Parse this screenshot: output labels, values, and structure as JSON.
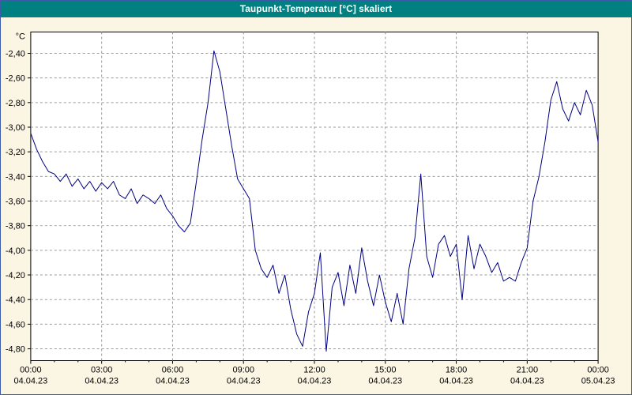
{
  "title": "Taupunkt-Temperatur [°C] skaliert",
  "colors": {
    "titlebar_bg": "#008080",
    "titlebar_text": "#ffffff",
    "window_bg": "#fbf5e4",
    "window_border": "#3c5ba8",
    "plot_bg": "#ffffff",
    "grid": "#9a9a9a",
    "axis": "#000000",
    "line": "#000080"
  },
  "chart_data": {
    "type": "line",
    "title": "Taupunkt-Temperatur [°C] skaliert",
    "ylabel": "°C",
    "xlabel": "",
    "grid": "dashed",
    "legend": "none",
    "ylim": [
      -4.9,
      -2.23
    ],
    "xlim_hours": [
      0,
      24
    ],
    "yticks": {
      "values": [
        -2.4,
        -2.6,
        -2.8,
        -3.0,
        -3.2,
        -3.4,
        -3.6,
        -3.8,
        -4.0,
        -4.2,
        -4.4,
        -4.6,
        -4.8
      ],
      "labels": [
        "-2,40",
        "-2,60",
        "-2,80",
        "-3,00",
        "-3,20",
        "-3,40",
        "-3,60",
        "-3,80",
        "-4,00",
        "-4,20",
        "-4,40",
        "-4,60",
        "-4,80"
      ]
    },
    "xticks": {
      "hours": [
        0,
        3,
        6,
        9,
        12,
        15,
        18,
        21,
        24
      ],
      "time_labels": [
        "00:00",
        "03:00",
        "06:00",
        "09:00",
        "12:00",
        "15:00",
        "18:00",
        "21:00",
        "00:00"
      ],
      "date_labels": [
        "04.04.23",
        "04.04.23",
        "04.04.23",
        "04.04.23",
        "04.04.23",
        "04.04.23",
        "04.04.23",
        "04.04.23",
        "05.04.23"
      ]
    },
    "series": [
      {
        "name": "Taupunkt-Temperatur",
        "color": "#000080",
        "x_hours": {
          "start": 0,
          "step": 0.25
        },
        "values": [
          -3.05,
          -3.18,
          -3.28,
          -3.36,
          -3.38,
          -3.44,
          -3.38,
          -3.48,
          -3.42,
          -3.5,
          -3.44,
          -3.52,
          -3.45,
          -3.5,
          -3.44,
          -3.55,
          -3.58,
          -3.5,
          -3.62,
          -3.55,
          -3.58,
          -3.62,
          -3.55,
          -3.66,
          -3.72,
          -3.8,
          -3.85,
          -3.78,
          -3.45,
          -3.1,
          -2.8,
          -2.38,
          -2.55,
          -2.85,
          -3.15,
          -3.42,
          -3.5,
          -3.58,
          -4.0,
          -4.15,
          -4.22,
          -4.12,
          -4.35,
          -4.2,
          -4.48,
          -4.68,
          -4.78,
          -4.5,
          -4.35,
          -4.02,
          -4.82,
          -4.3,
          -4.18,
          -4.45,
          -4.12,
          -4.35,
          -3.98,
          -4.25,
          -4.45,
          -4.2,
          -4.42,
          -4.58,
          -4.35,
          -4.6,
          -4.15,
          -3.9,
          -3.38,
          -4.05,
          -4.22,
          -3.95,
          -3.88,
          -4.05,
          -3.95,
          -4.4,
          -3.88,
          -4.15,
          -3.95,
          -4.05,
          -4.18,
          -4.1,
          -4.25,
          -4.22,
          -4.25,
          -4.1,
          -3.98,
          -3.6,
          -3.4,
          -3.12,
          -2.78,
          -2.63,
          -2.85,
          -2.95,
          -2.8,
          -2.9,
          -2.7,
          -2.82,
          -3.12
        ]
      }
    ]
  }
}
